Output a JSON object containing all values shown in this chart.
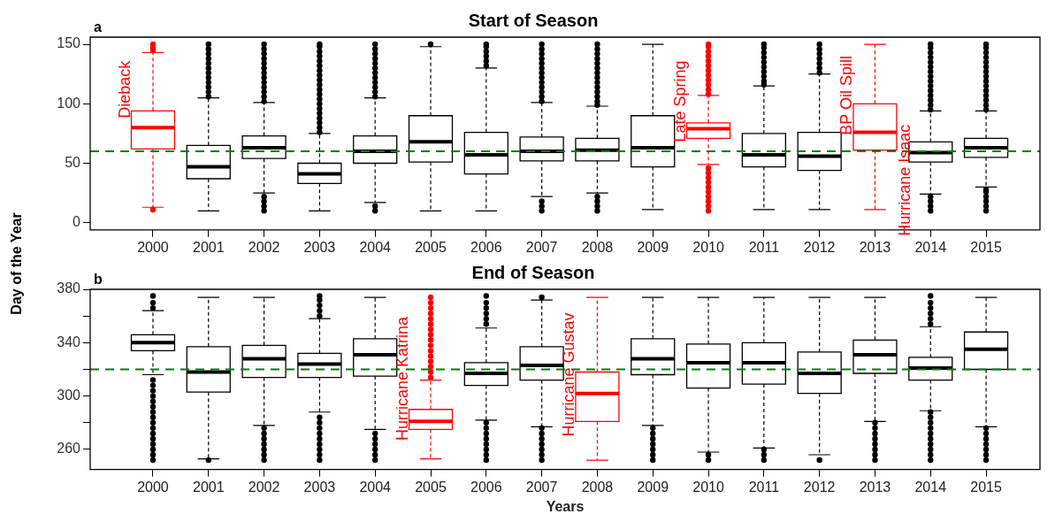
{
  "chart_data": [
    {
      "type": "box",
      "title": "Start of Season",
      "subtitle": "a",
      "ylabel": "Day of the Year",
      "categories": [
        "2000",
        "2001",
        "2002",
        "2003",
        "2004",
        "2005",
        "2006",
        "2007",
        "2008",
        "2009",
        "2010",
        "2011",
        "2012",
        "2013",
        "2014",
        "2015"
      ],
      "colors": [
        "#ff0000",
        "#000000",
        "#000000",
        "#000000",
        "#000000",
        "#000000",
        "#000000",
        "#000000",
        "#000000",
        "#000000",
        "#ff0000",
        "#000000",
        "#000000",
        "#ff0000",
        "#000000",
        "#000000"
      ],
      "boxes": [
        {
          "low": 13,
          "q1": 62,
          "median": 80,
          "q3": 94,
          "high": 143,
          "outliers": [
            11,
            145,
            147,
            150
          ]
        },
        {
          "low": 10,
          "q1": 37,
          "median": 47,
          "q3": 65,
          "high": 105,
          "outliers": [
            106,
            110,
            114,
            118,
            122,
            126,
            130,
            134,
            138,
            142,
            146,
            150
          ]
        },
        {
          "low": 25,
          "q1": 54,
          "median": 63,
          "q3": 73,
          "high": 101,
          "outliers": [
            10,
            14,
            18,
            22,
            102,
            106,
            110,
            114,
            118,
            122,
            126,
            130,
            134,
            138,
            142,
            146,
            150
          ]
        },
        {
          "low": 10,
          "q1": 33,
          "median": 41,
          "q3": 50,
          "high": 75,
          "outliers": [
            76,
            80,
            84,
            88,
            92,
            96,
            100,
            104,
            108,
            112,
            116,
            120,
            124,
            128,
            132,
            136,
            140,
            144,
            148,
            150
          ]
        },
        {
          "low": 17,
          "q1": 50,
          "median": 60,
          "q3": 73,
          "high": 105,
          "outliers": [
            10,
            14,
            106,
            110,
            114,
            118,
            122,
            126,
            130,
            134,
            138,
            142,
            146,
            150
          ]
        },
        {
          "low": 10,
          "q1": 51,
          "median": 68,
          "q3": 90,
          "high": 148,
          "outliers": [
            150
          ]
        },
        {
          "low": 10,
          "q1": 41,
          "median": 57,
          "q3": 76,
          "high": 130,
          "outliers": [
            132,
            136,
            140,
            144,
            148,
            150
          ]
        },
        {
          "low": 22,
          "q1": 52,
          "median": 60,
          "q3": 72,
          "high": 101,
          "outliers": [
            10,
            14,
            18,
            102,
            106,
            110,
            114,
            118,
            122,
            126,
            130,
            134,
            138,
            142,
            146,
            150
          ]
        },
        {
          "low": 25,
          "q1": 52,
          "median": 61,
          "q3": 71,
          "high": 98,
          "outliers": [
            10,
            14,
            18,
            22,
            99,
            102,
            106,
            110,
            114,
            118,
            122,
            126,
            130,
            134,
            138,
            142,
            146,
            150
          ]
        },
        {
          "low": 11,
          "q1": 47,
          "median": 63,
          "q3": 90,
          "high": 150
        },
        {
          "low": 49,
          "q1": 71,
          "median": 79,
          "q3": 84,
          "high": 107,
          "outliers": [
            10,
            14,
            18,
            22,
            26,
            30,
            34,
            38,
            42,
            46,
            108,
            112,
            116,
            120,
            124,
            128,
            132,
            136,
            140,
            144,
            148,
            150
          ]
        },
        {
          "low": 11,
          "q1": 47,
          "median": 57,
          "q3": 75,
          "high": 115,
          "outliers": [
            116,
            119,
            123,
            127,
            131,
            135,
            139,
            143,
            147,
            150
          ]
        },
        {
          "low": 11,
          "q1": 44,
          "median": 56,
          "q3": 76,
          "high": 125,
          "outliers": [
            126,
            130,
            134,
            138,
            142,
            146,
            150
          ]
        },
        {
          "low": 11,
          "q1": 61,
          "median": 76,
          "q3": 100,
          "high": 150
        },
        {
          "low": 24,
          "q1": 51,
          "median": 59,
          "q3": 68,
          "high": 94,
          "outliers": [
            10,
            14,
            18,
            22,
            95,
            99,
            103,
            107,
            111,
            115,
            119,
            123,
            127,
            131,
            135,
            139,
            143,
            147,
            150
          ]
        },
        {
          "low": 30,
          "q1": 55,
          "median": 63,
          "q3": 71,
          "high": 94,
          "outliers": [
            10,
            14,
            18,
            22,
            26,
            28,
            95,
            99,
            103,
            107,
            111,
            115,
            119,
            123,
            127,
            131,
            135,
            139,
            143,
            147,
            150
          ]
        }
      ],
      "ylim": [
        -6,
        156
      ],
      "yticks": [
        0,
        50,
        100,
        150
      ],
      "ref_lines": [
        {
          "axis": "y",
          "value": 60,
          "color": "#008000",
          "line_style": "dashed"
        }
      ],
      "annotations": [
        {
          "text": "Dieback",
          "x": "2000",
          "y": 112
        },
        {
          "text": "Late Spring",
          "x": "2010",
          "y": 102
        },
        {
          "text": "BP Oil Spill",
          "x": "2013",
          "y": 107
        },
        "Hurricane Isaac"
      ]
    },
    {
      "type": "box",
      "title": "End of Season",
      "subtitle": "b",
      "xlabel": "Years",
      "categories": [
        "2000",
        "2001",
        "2002",
        "2003",
        "2004",
        "2005",
        "2006",
        "2007",
        "2008",
        "2009",
        "2010",
        "2011",
        "2012",
        "2013",
        "2014",
        "2015"
      ],
      "colors": [
        "#000000",
        "#000000",
        "#000000",
        "#000000",
        "#000000",
        "#ff0000",
        "#000000",
        "#000000",
        "#ff0000",
        "#000000",
        "#000000",
        "#000000",
        "#000000",
        "#000000",
        "#000000",
        "#000000"
      ],
      "boxes": [
        {
          "low": 316,
          "q1": 334,
          "median": 340,
          "q3": 346,
          "high": 364,
          "outliers": [
            252,
            256,
            260,
            264,
            268,
            272,
            276,
            280,
            284,
            288,
            292,
            296,
            300,
            304,
            308,
            312,
            366,
            370,
            375
          ]
        },
        {
          "low": 253,
          "q1": 303,
          "median": 318,
          "q3": 337,
          "high": 374,
          "outliers": [
            252
          ]
        },
        {
          "low": 278,
          "q1": 314,
          "median": 328,
          "q3": 338,
          "high": 374,
          "outliers": [
            252,
            256,
            260,
            264,
            268,
            272,
            276
          ]
        },
        {
          "low": 288,
          "q1": 314,
          "median": 324,
          "q3": 332,
          "high": 358,
          "outliers": [
            252,
            256,
            260,
            264,
            268,
            272,
            276,
            280,
            284,
            360,
            364,
            368,
            372,
            375
          ]
        },
        {
          "low": 275,
          "q1": 315,
          "median": 331,
          "q3": 343,
          "high": 374,
          "outliers": [
            252,
            256,
            260,
            264,
            268,
            272
          ]
        },
        {
          "low": 253,
          "q1": 275,
          "median": 281,
          "q3": 290,
          "high": 312,
          "outliers": [
            314,
            318,
            322,
            326,
            330,
            334,
            338,
            342,
            346,
            350,
            354,
            358,
            362,
            366,
            370,
            374
          ]
        },
        {
          "low": 282,
          "q1": 308,
          "median": 317,
          "q3": 325,
          "high": 351,
          "outliers": [
            252,
            256,
            260,
            264,
            268,
            272,
            276,
            280,
            354,
            358,
            362,
            366,
            370,
            375
          ]
        },
        {
          "low": 277,
          "q1": 312,
          "median": 323,
          "q3": 337,
          "high": 372,
          "outliers": [
            252,
            256,
            260,
            264,
            268,
            272,
            276,
            374
          ]
        },
        {
          "low": 252,
          "q1": 281,
          "median": 302,
          "q3": 318,
          "high": 374
        },
        {
          "low": 278,
          "q1": 316,
          "median": 328,
          "q3": 343,
          "high": 374,
          "outliers": [
            252,
            256,
            260,
            264,
            268,
            272,
            276
          ]
        },
        {
          "low": 258,
          "q1": 306,
          "median": 325,
          "q3": 339,
          "high": 374,
          "outliers": [
            252,
            256
          ]
        },
        {
          "low": 261,
          "q1": 309,
          "median": 325,
          "q3": 340,
          "high": 374,
          "outliers": [
            252,
            256,
            260
          ]
        },
        {
          "low": 256,
          "q1": 302,
          "median": 317,
          "q3": 333,
          "high": 374,
          "outliers": [
            252
          ]
        },
        {
          "low": 281,
          "q1": 317,
          "median": 331,
          "q3": 342,
          "high": 374,
          "outliers": [
            252,
            256,
            260,
            264,
            268,
            272,
            276,
            280
          ]
        },
        {
          "low": 289,
          "q1": 312,
          "median": 321,
          "q3": 329,
          "high": 352,
          "outliers": [
            252,
            256,
            260,
            264,
            268,
            272,
            276,
            280,
            284,
            288,
            354,
            358,
            362,
            366,
            370,
            375
          ]
        },
        {
          "low": 277,
          "q1": 320,
          "median": 335,
          "q3": 348,
          "high": 374,
          "outliers": [
            252,
            256,
            260,
            264,
            268,
            272,
            276
          ]
        }
      ],
      "ylim": [
        245,
        380
      ],
      "yticks": [
        260,
        {
          "value": 280,
          "label": null
        },
        300,
        {
          "value": 320,
          "label": null
        },
        340,
        {
          "value": 360,
          "label": null
        },
        380
      ],
      "ref_lines": [
        {
          "axis": "y",
          "value": 320,
          "color": "#008000",
          "line_style": "dashed"
        }
      ],
      "annotations": [
        {
          "text": "Hurricane Katrina",
          "x": "2005",
          "y": 313
        },
        {
          "text": "Hurricane Gustav",
          "x": "2008",
          "y": 316
        }
      ]
    }
  ]
}
